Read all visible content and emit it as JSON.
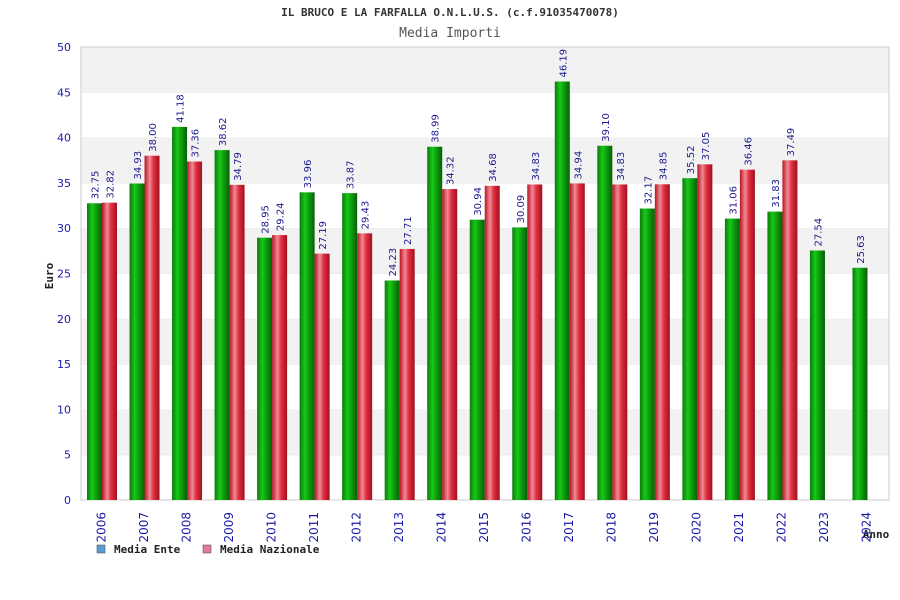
{
  "chart_data": {
    "type": "bar",
    "title": "IL BRUCO E LA FARFALLA O.N.L.U.S. (c.f.91035470078)",
    "subtitle": "Media Importi",
    "xlabel": "Anno",
    "ylabel": "Euro",
    "ylim": [
      0,
      50
    ],
    "yticks": [
      0,
      5,
      10,
      15,
      20,
      25,
      30,
      35,
      40,
      45,
      50
    ],
    "grid": true,
    "legend_position": "bottom-left",
    "categories": [
      "2006",
      "2007",
      "2008",
      "2009",
      "2010",
      "2011",
      "2012",
      "2013",
      "2014",
      "2015",
      "2016",
      "2017",
      "2018",
      "2019",
      "2020",
      "2021",
      "2022",
      "2023",
      "2024"
    ],
    "series": [
      {
        "name": "Media Ente",
        "legend_color": "#5b9bd5",
        "color": "#11a811",
        "values": [
          "32.75",
          "34.93",
          "41.18",
          "38.62",
          "28.95",
          "33.96",
          "33.87",
          "24.23",
          "38.99",
          "30.94",
          "30.09",
          "46.19",
          "39.10",
          "32.17",
          "35.52",
          "31.06",
          "31.83",
          "27.54",
          "25.63"
        ]
      },
      {
        "name": "Media Nazionale",
        "legend_color": "#e07aa5",
        "color": "#e02538",
        "values": [
          "32.82",
          "38.00",
          "37.36",
          "34.79",
          "29.24",
          "27.19",
          "29.43",
          "27.71",
          "34.32",
          "34.68",
          "34.83",
          "34.94",
          "34.83",
          "34.85",
          "37.05",
          "36.46",
          "37.49",
          null,
          null
        ]
      }
    ]
  }
}
